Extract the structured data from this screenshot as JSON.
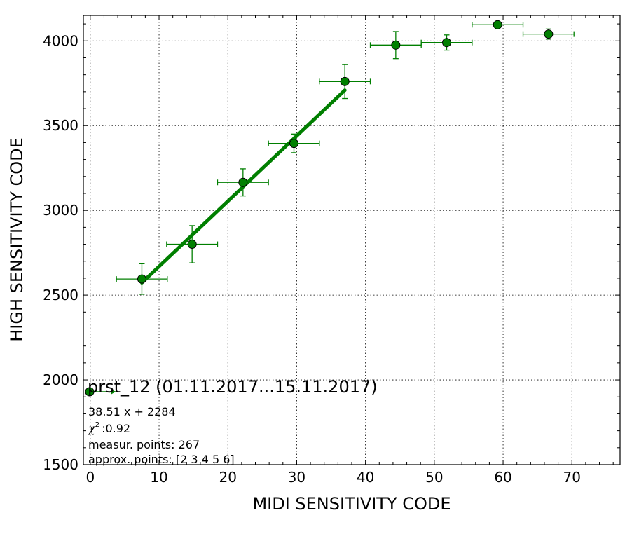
{
  "chart_data": {
    "type": "scatter",
    "title": "",
    "xlabel": "MIDI SENSITIVITY CODE",
    "ylabel": "HIGH SENSITIVITY CODE",
    "xlim": [
      -1,
      77
    ],
    "ylim": [
      1500,
      4150
    ],
    "xticks": [
      0,
      10,
      20,
      30,
      40,
      50,
      60,
      70
    ],
    "yticks": [
      1500,
      2000,
      2500,
      3000,
      3500,
      4000
    ],
    "grid": true,
    "colors": {
      "series": "#007f00",
      "fit": "#007f00",
      "marker_fill": "#008000"
    },
    "series": [
      {
        "x": [
          7.5,
          14.8,
          22.2,
          29.6,
          37.0,
          44.4,
          51.8,
          59.2,
          66.6
        ],
        "y": [
          2595,
          2800,
          3165,
          3395,
          3760,
          3975,
          3990,
          4095,
          4040
        ],
        "xerr": [
          3.7,
          3.7,
          3.7,
          3.7,
          3.7,
          3.7,
          3.7,
          3.7,
          3.7
        ],
        "yerr": [
          90,
          110,
          80,
          55,
          100,
          80,
          45,
          0,
          30
        ]
      }
    ],
    "fit": {
      "x_range": [
        7.5,
        37.0
      ],
      "slope": 38.51,
      "intercept": 2284
    },
    "legend": {
      "position": "bottom-left",
      "title": "prst_12 (01.11.2017...15.11.2017)",
      "lines": [
        "38.51 x + 2284",
        ":0.92",
        "measur. points: 267",
        "approx. points: [2 3 4 5 6]"
      ],
      "chi_symbol": "χ",
      "chi_sup": "2"
    }
  }
}
